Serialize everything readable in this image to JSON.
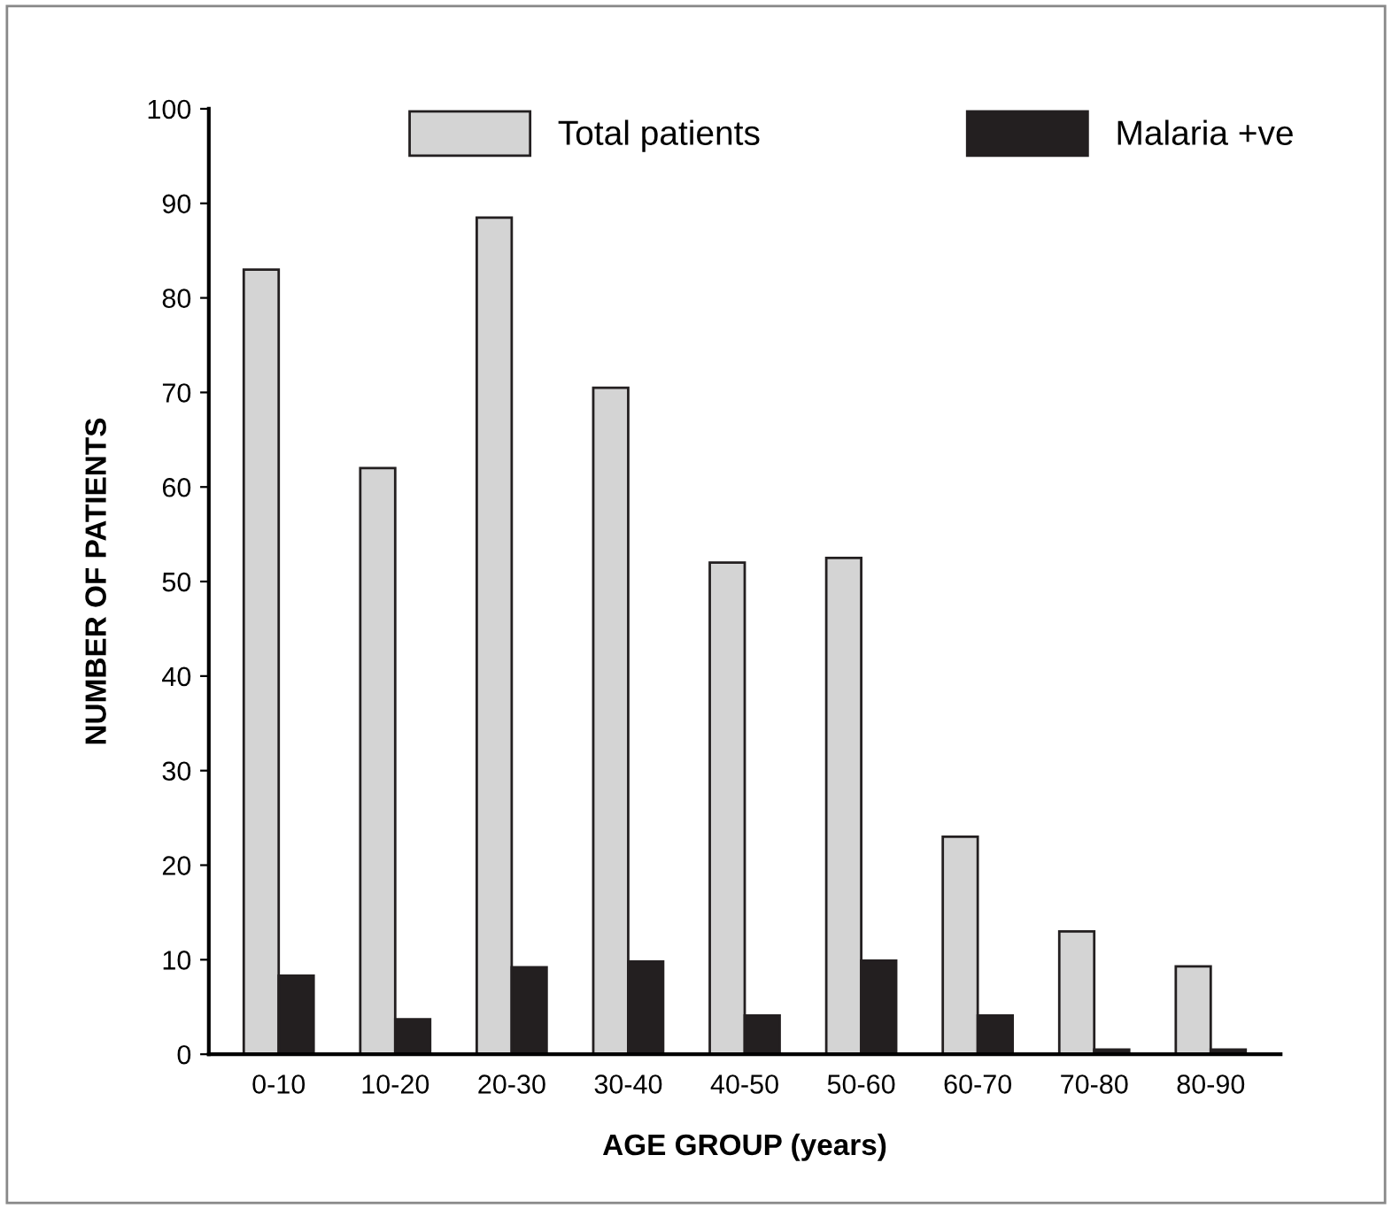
{
  "chart_data": {
    "type": "bar",
    "xlabel": "AGE GROUP (years)",
    "ylabel": "NUMBER OF PATIENTS",
    "categories": [
      "0-10",
      "10-20",
      "20-30",
      "30-40",
      "40-50",
      "50-60",
      "60-70",
      "70-80",
      "80-90"
    ],
    "series": [
      {
        "name": "Total patients",
        "color": "#d4d4d4",
        "values": [
          83,
          62,
          88.5,
          70.5,
          52,
          52.5,
          23,
          13,
          9.3
        ]
      },
      {
        "name": "Malaria +ve",
        "color": "#231f20",
        "values": [
          8.3,
          3.7,
          9.2,
          9.8,
          4.1,
          9.9,
          4.1,
          0.5,
          0.5
        ]
      }
    ],
    "ylim": [
      0,
      100
    ],
    "yticks": [
      0,
      10,
      20,
      30,
      40,
      50,
      60,
      70,
      80,
      90,
      100
    ],
    "grid": false,
    "legend": "top"
  }
}
